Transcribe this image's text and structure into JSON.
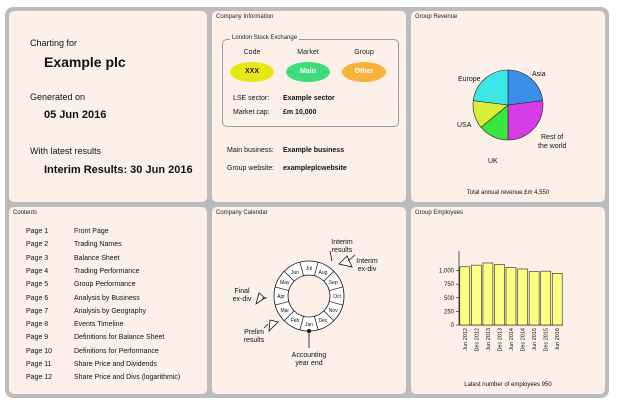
{
  "front": {
    "charting_for_label": "Charting for",
    "company": "Example plc",
    "generated_label": "Generated on",
    "generated_date": "05 Jun 2016",
    "latest_label": "With latest results",
    "latest_value": "Interim Results: 30 Jun 2016"
  },
  "company_info": {
    "title": "Company Information",
    "exchange_label": "London Stock Exchange",
    "columns": [
      {
        "header": "Code",
        "value": "XXX",
        "color": "#e8e816",
        "text_color": "#222222"
      },
      {
        "header": "Market",
        "value": "Main",
        "color": "#3ddc7c",
        "text_color": "#ffffff"
      },
      {
        "header": "Group",
        "value": "Other",
        "color": "#f8b23a",
        "text_color": "#ffffff"
      }
    ],
    "lse_sector_label": "LSE sector:",
    "lse_sector_value": "Example sector",
    "market_cap_label": "Market cap:",
    "market_cap_value": "£m 10,000",
    "main_business_label": "Main business:",
    "main_business_value": "Example business",
    "website_label": "Group website:",
    "website_value": "exampleplcwebsite"
  },
  "revenue": {
    "title": "Group Revenue",
    "caption": "Total annual revenue £m 4,550",
    "chart_data": {
      "type": "pie",
      "slices": [
        {
          "label": "Asia",
          "value": 23,
          "color": "#3a8fe8"
        },
        {
          "label": "Rest of the world",
          "value": 27,
          "color": "#d63be6"
        },
        {
          "label": "UK",
          "value": 14,
          "color": "#39e53e"
        },
        {
          "label": "USA",
          "value": 13,
          "color": "#d8ee38"
        },
        {
          "label": "Europe",
          "value": 23,
          "color": "#3ee6e8"
        }
      ]
    }
  },
  "contents": {
    "title": "Contents",
    "items": [
      {
        "page": "Page 1",
        "name": "Front Page"
      },
      {
        "page": "Page 2",
        "name": "Trading Names"
      },
      {
        "page": "Page 3",
        "name": "Balance Sheet"
      },
      {
        "page": "Page 4",
        "name": "Trading Performance"
      },
      {
        "page": "Page 5",
        "name": "Group Performance"
      },
      {
        "page": "Page 6",
        "name": "Analysis by Business"
      },
      {
        "page": "Page 7",
        "name": "Analysis by Geography"
      },
      {
        "page": "Page 8",
        "name": "Events Timeline"
      },
      {
        "page": "Page 9",
        "name": "Definitions for Balance Sheet"
      },
      {
        "page": "Page 10",
        "name": "Definitions for Performance"
      },
      {
        "page": "Page 11",
        "name": "Share Price and Dividends"
      },
      {
        "page": "Page 12",
        "name": "Share Price and Divs (logarithmic)"
      }
    ]
  },
  "calendar": {
    "title": "Company Calendar",
    "months": [
      "Jan",
      "Feb",
      "Mar",
      "Apr",
      "May",
      "Jun",
      "Jul",
      "Aug",
      "Sep",
      "Oct",
      "Nov",
      "Dec"
    ],
    "events": {
      "interim_results": "Interim results",
      "interim_exdiv": "Interim ex-div",
      "final_exdiv": "Final ex-div",
      "prelim_results": "Prelim results",
      "year_end": "Accounting year end"
    }
  },
  "employees": {
    "title": "Group Employees",
    "caption": "Latest number of employees 950",
    "chart_data": {
      "type": "bar",
      "categories": [
        "Jun 2012",
        "Dec 2012",
        "Jun 2013",
        "Dec 2013",
        "Jun 2014",
        "Dec 2014",
        "Jun 2015",
        "Dec 2015",
        "Jun 2016"
      ],
      "values": [
        1070,
        1100,
        1140,
        1110,
        1060,
        1030,
        980,
        990,
        950
      ],
      "yticks": [
        0,
        250,
        500,
        750,
        "1,000"
      ],
      "ylim": [
        0,
        1250
      ],
      "bar_color": "#ffff80"
    }
  }
}
